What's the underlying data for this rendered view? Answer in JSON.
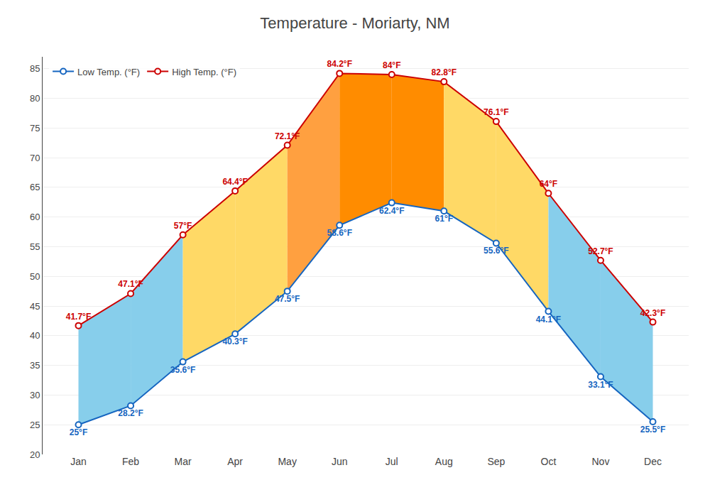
{
  "chart_data": {
    "type": "line",
    "title": "Temperature - Moriarty, NM",
    "categories": [
      "Jan",
      "Feb",
      "Mar",
      "Apr",
      "May",
      "Jun",
      "Jul",
      "Aug",
      "Sep",
      "Oct",
      "Nov",
      "Dec"
    ],
    "series": [
      {
        "name": "Low Temp. (°F)",
        "color": "#1565C0",
        "marker": "circle",
        "values": [
          25,
          28.2,
          35.6,
          40.3,
          47.5,
          58.6,
          62.4,
          61.0,
          55.6,
          44.1,
          33.1,
          25.5
        ],
        "value_labels": [
          "25°F",
          "28.2°F",
          "35.6°F",
          "40.3°F",
          "47.5°F",
          "58.6°F",
          "62.4°F",
          "61°F",
          "55.6°F",
          "44.1°F",
          "33.1°F",
          "25.5°F"
        ]
      },
      {
        "name": "High Temp. (°F)",
        "color": "#CC0000",
        "marker": "circle",
        "values": [
          41.7,
          47.1,
          57.0,
          64.4,
          72.1,
          84.2,
          84.0,
          82.8,
          76.1,
          64.0,
          52.7,
          42.3
        ],
        "value_labels": [
          "41.7°F",
          "47.1°F",
          "57°F",
          "64.4°F",
          "72.1°F",
          "84.2°F",
          "84°F",
          "82.8°F",
          "76.1°F",
          "64°F",
          "52.7°F",
          "42.3°F"
        ]
      }
    ],
    "colors": [
      "#87CEEB",
      "#87CEEB",
      "#FFD966",
      "#FFD966",
      "#FFA040",
      "#FF8C00",
      "#FF8C00",
      "#FFD966",
      "#FFD966",
      "#87CEEB",
      "#87CEEB"
    ],
    "ylim": [
      20,
      87
    ],
    "yticks": [
      20,
      25,
      30,
      35,
      40,
      45,
      50,
      55,
      60,
      65,
      70,
      75,
      80,
      85
    ],
    "grid": true,
    "legend": "upper left",
    "data_labels": true
  }
}
